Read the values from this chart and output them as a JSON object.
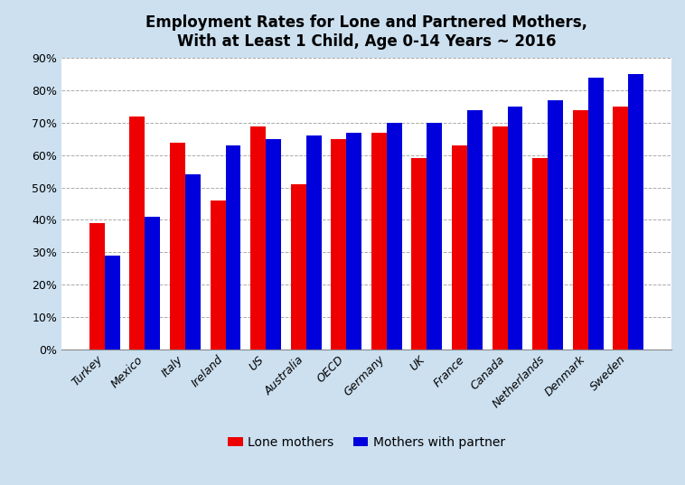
{
  "title": "Employment Rates for Lone and Partnered Mothers,\nWith at Least 1 Child, Age 0-14 Years ~ 2016",
  "categories": [
    "Turkey",
    "Mexico",
    "Italy",
    "Ireland",
    "US",
    "Australia",
    "OECD",
    "Germany",
    "UK",
    "France",
    "Canada",
    "Netherlands",
    "Denmark",
    "Sweden"
  ],
  "lone_mothers": [
    39,
    72,
    64,
    46,
    69,
    51,
    65,
    67,
    59,
    63,
    69,
    59,
    74,
    75
  ],
  "partnered_mothers": [
    29,
    41,
    54,
    63,
    65,
    66,
    67,
    70,
    70,
    74,
    75,
    77,
    84,
    85
  ],
  "lone_color": "#ee0000",
  "partner_color": "#0000dd",
  "background_color": "#cce0f0",
  "plot_bg_color": "#ffffff",
  "ylim": [
    0,
    90
  ],
  "ytick_step": 10,
  "legend_labels": [
    "Lone mothers",
    "Mothers with partner"
  ],
  "bar_width": 0.38,
  "grid_color": "#aaaaaa",
  "title_fontsize": 12,
  "axis_fontsize": 9,
  "legend_fontsize": 10
}
